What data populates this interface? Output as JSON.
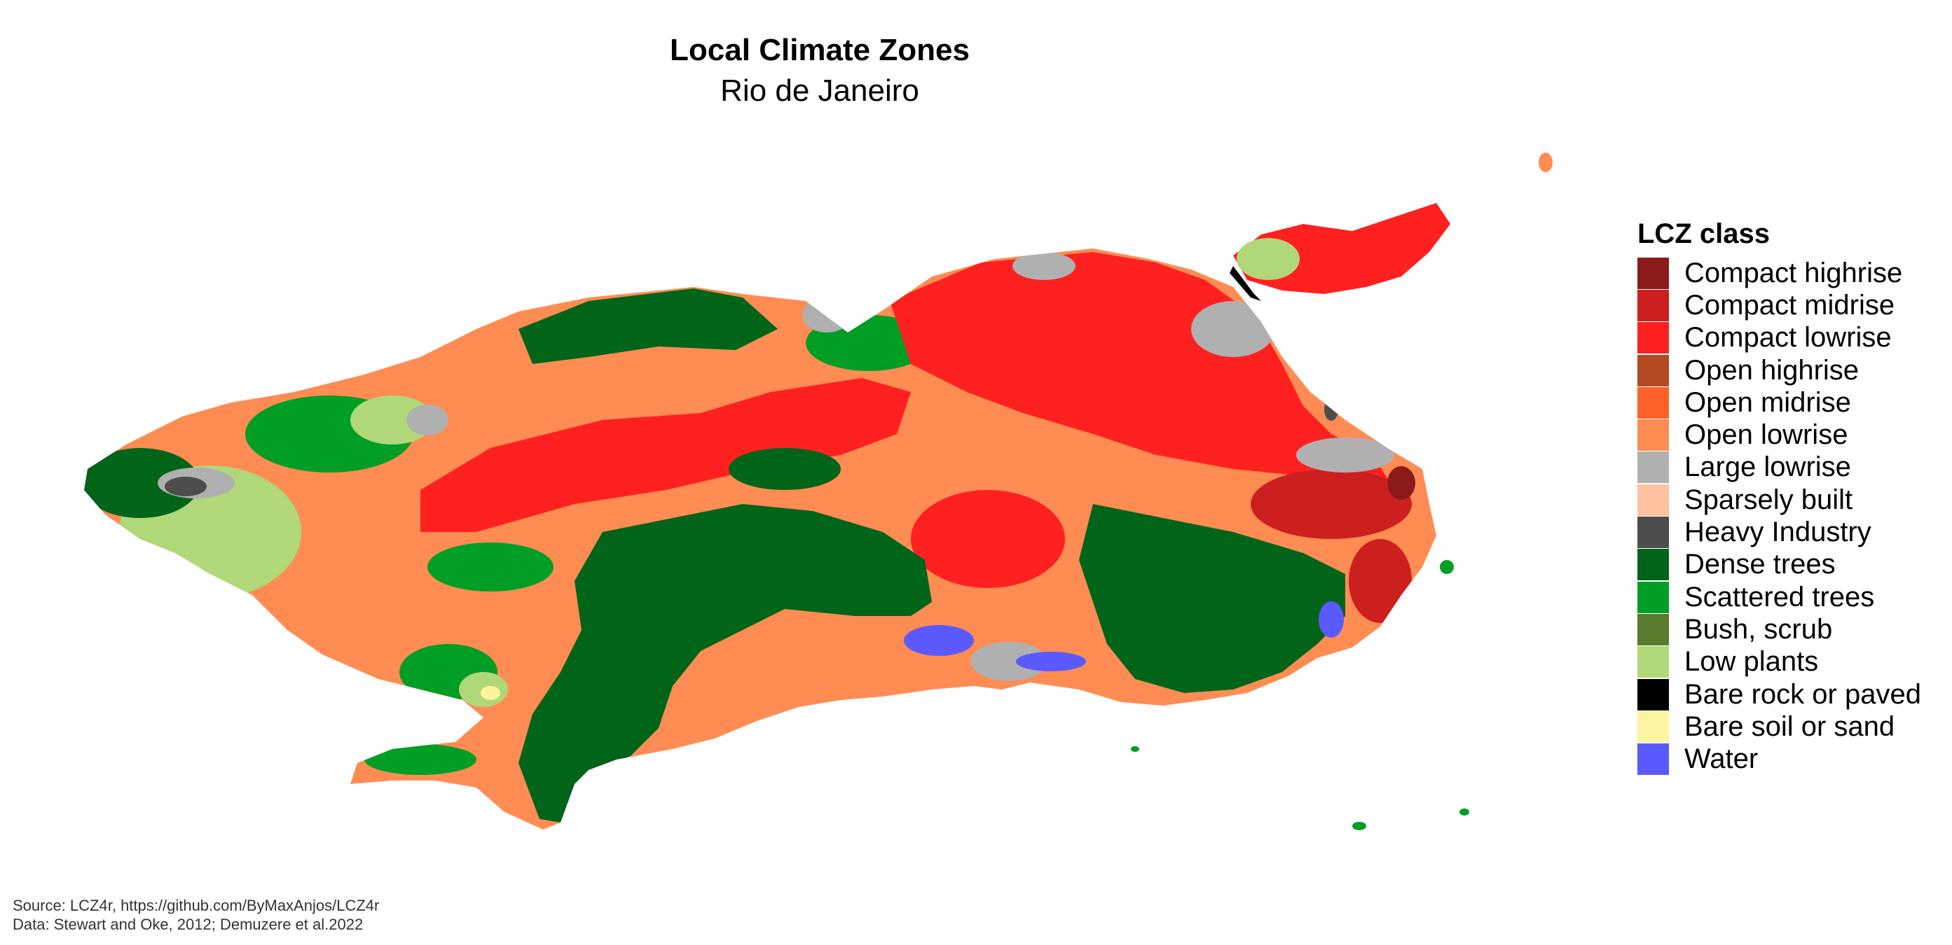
{
  "title": "Local Climate Zones",
  "subtitle": "Rio de Janeiro",
  "legend": {
    "title": "LCZ class",
    "items": [
      {
        "label": "Compact highrise",
        "color": "#8b1a1a"
      },
      {
        "label": "Compact midrise",
        "color": "#cd1f1f"
      },
      {
        "label": "Compact lowrise",
        "color": "#ff2020"
      },
      {
        "label": "Open highrise",
        "color": "#b34a22"
      },
      {
        "label": "Open midrise",
        "color": "#ff6228"
      },
      {
        "label": "Open lowrise",
        "color": "#ff8c52"
      },
      {
        "label": "Large lowrise",
        "color": "#b0b0b0"
      },
      {
        "label": "Sparsely built",
        "color": "#ffc1a0"
      },
      {
        "label": "Heavy Industry",
        "color": "#4d4d4d"
      },
      {
        "label": "Dense trees",
        "color": "#006419"
      },
      {
        "label": "Scattered trees",
        "color": "#009e25"
      },
      {
        "label": "Bush, scrub",
        "color": "#5a7a2e"
      },
      {
        "label": "Low plants",
        "color": "#b0d878"
      },
      {
        "label": "Bare rock or paved",
        "color": "#000000"
      },
      {
        "label": "Bare soil or sand",
        "color": "#fcf4a0"
      },
      {
        "label": "Water",
        "color": "#5a5aff"
      }
    ]
  },
  "caption": {
    "source": "Source: LCZ4r, https://github.com/ByMaxAnjos/LCZ4r",
    "data": "Data: Stewart and Oke, 2012; Demuzere et al.2022"
  }
}
